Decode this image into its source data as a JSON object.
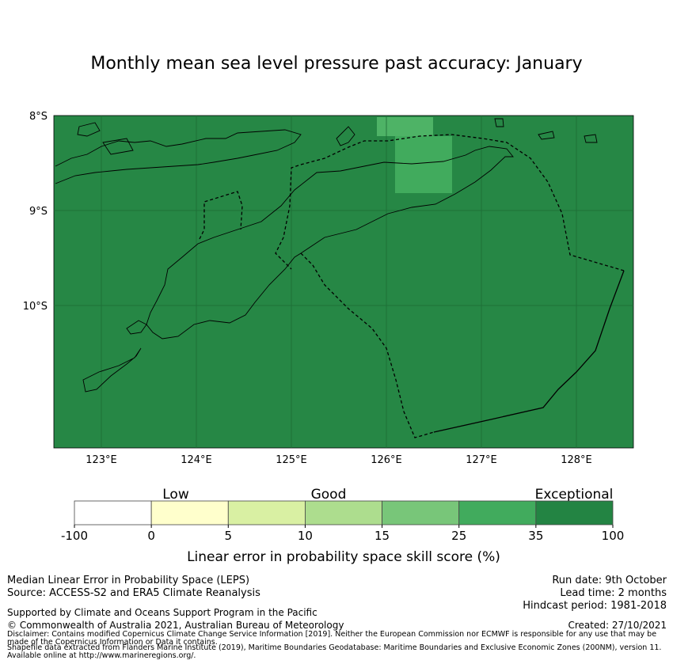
{
  "title": "Monthly mean sea level pressure past accuracy: January",
  "map": {
    "lat_labels": [
      "8°S",
      "9°S",
      "10°S"
    ],
    "lon_labels": [
      "123°E",
      "124°E",
      "125°E",
      "126°E",
      "127°E",
      "128°E"
    ],
    "colors": {
      "ocean": "#268745",
      "cell_35_25": "#41ab5d",
      "cell_25_15": "#4eb366",
      "land_outline": "#000000",
      "grid": "#1d6b36"
    }
  },
  "colorbar": {
    "category_labels": [
      "Low",
      "Good",
      "Exceptional"
    ],
    "ticks": [
      "-100",
      "0",
      "5",
      "10",
      "15",
      "25",
      "35",
      "100"
    ],
    "colors": [
      "#ffffff",
      "#ffffcc",
      "#d9f0a3",
      "#addd8e",
      "#78c679",
      "#41ab5d",
      "#238443"
    ],
    "label": "Linear error in probability space skill score (%)"
  },
  "footer": {
    "left_line1": "Median Linear Error in Probability Space (LEPS)",
    "left_line2": "Source: ACCESS-S2 and ERA5 Climate Reanalysis",
    "supported": "Supported by Climate and Oceans Support Program in the Pacific",
    "copyright": "© Commonwealth of Australia 2021, Australian Bureau of Meteorology",
    "run_date": "Run date: 9th October",
    "lead_time": "Lead time: 2 months",
    "hindcast": "Hindcast period: 1981-2018",
    "created": "Created: 27/10/2021",
    "disclaimer": "Disclaimer: Contains modified Copernicus Climate Change Service Information [2019]. Neither the European Commission nor ECMWF is responsible for any use that may be made of the Copernicus Information or Data it contains.",
    "shapefile": "Shapefile data extracted from Flanders Marine Institute (2019), Maritime Boundaries Geodatabase: Maritime Boundaries and Exclusive Economic Zones (200NM), version 11. Available online at http://www.marineregions.org/."
  }
}
